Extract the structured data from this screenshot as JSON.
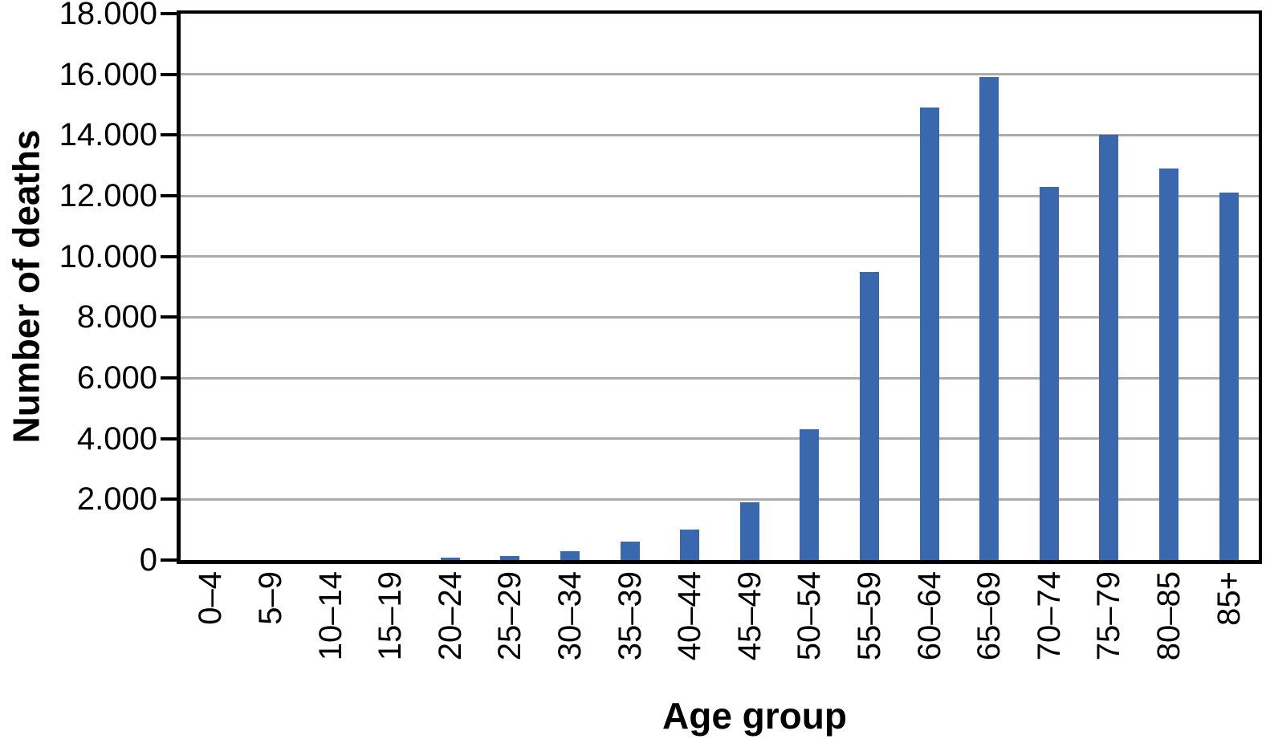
{
  "chart_data": {
    "type": "bar",
    "title": "",
    "xlabel": "Age group",
    "ylabel": "Number of deaths",
    "categories": [
      "0–4",
      "5–9",
      "10–14",
      "15–19",
      "20–24",
      "25–29",
      "30–34",
      "35–39",
      "40–44",
      "45–49",
      "50–54",
      "55–59",
      "60–64",
      "65–69",
      "70–74",
      "75–79",
      "80–85",
      "85+"
    ],
    "values": [
      0,
      0,
      0,
      0,
      80,
      120,
      300,
      600,
      1000,
      1900,
      4300,
      9500,
      14900,
      15900,
      12300,
      14000,
      12900,
      12100
    ],
    "ylim": [
      0,
      18000
    ],
    "ytick_values": [
      0,
      2000,
      4000,
      6000,
      8000,
      10000,
      12000,
      14000,
      16000,
      18000
    ],
    "ytick_labels": [
      "0",
      "2.000",
      "4.000",
      "6.000",
      "8.000",
      "10.000",
      "12.000",
      "14.000",
      "16.000",
      "18.000"
    ],
    "grid": true,
    "legend_position": "none",
    "colors": {
      "bar": "#3A68AE",
      "gridline": "#ABABAB",
      "axis": "#000000",
      "background": "#FFFFFF",
      "text": "#000000"
    }
  }
}
